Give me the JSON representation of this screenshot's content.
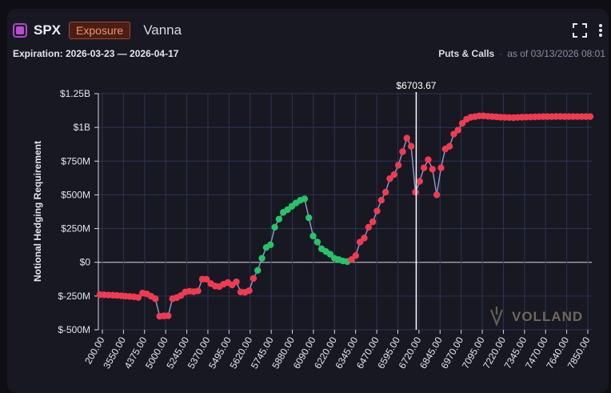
{
  "header": {
    "ticker": "SPX",
    "badge": "Exposure",
    "metric": "Vanna"
  },
  "subheader": {
    "expiration": "Expiration: 2026-03-23 — 2026-04-17",
    "type": "Puts & Calls",
    "sep": "·",
    "asof": "as of 03/13/2026 08:01"
  },
  "icons": [
    "fullscreen-icon",
    "more-vertical-icon"
  ],
  "colors": {
    "positive": "#27c46a",
    "negative": "#ef3b52",
    "connector": "#8c93c8",
    "spot": "#ffffff",
    "grid": "#2c3552"
  },
  "watermark": "VOLLAND",
  "chart_data": {
    "type": "scatter",
    "ylabel": "Notional Hedging Requirement",
    "ylim": [
      -500000000,
      1250000000
    ],
    "yticks": [
      {
        "value": 1250000000,
        "label": "$1.25B"
      },
      {
        "value": 1000000000,
        "label": "$1B"
      },
      {
        "value": 750000000,
        "label": "$750M"
      },
      {
        "value": 500000000,
        "label": "$500M"
      },
      {
        "value": 250000000,
        "label": "$250M"
      },
      {
        "value": 0,
        "label": "$0"
      },
      {
        "value": -250000000,
        "label": "$-250M"
      },
      {
        "value": -500000000,
        "label": "$-500M"
      }
    ],
    "xtick_labels": [
      "200.00",
      "3550.00",
      "4375.00",
      "5000.00",
      "5245.00",
      "5370.00",
      "5495.00",
      "5620.00",
      "5745.00",
      "5880.00",
      "6090.00",
      "6220.00",
      "6345.00",
      "6470.00",
      "6595.00",
      "6720.00",
      "6845.00",
      "6970.00",
      "7095.00",
      "7220.00",
      "7345.00",
      "7470.00",
      "7640.00",
      "7850.00"
    ],
    "spot": {
      "value": 6703.67,
      "label": "$6703.67"
    },
    "grid": true,
    "series": [
      {
        "values": [
          -240,
          -241,
          -243,
          -244,
          -246,
          -248,
          -251,
          -253,
          -256,
          -261,
          -228,
          -235,
          -252,
          -270,
          -400,
          -397,
          -396,
          -270,
          -262,
          -246,
          -220,
          -214,
          -218,
          -212,
          -125,
          -126,
          -158,
          -176,
          -180,
          -162,
          -150,
          -168,
          -145,
          -220,
          -222,
          -210,
          -120,
          -60,
          30,
          110,
          130,
          260,
          320,
          370,
          390,
          415,
          440,
          460,
          470,
          330,
          195,
          150,
          100,
          80,
          60,
          30,
          20,
          10,
          5,
          20,
          50,
          150,
          180,
          260,
          300,
          380,
          460,
          520,
          620,
          650,
          720,
          820,
          920,
          860,
          520,
          600,
          700,
          760,
          690,
          500,
          700,
          840,
          860,
          950,
          980,
          1030,
          1060,
          1075,
          1080,
          1085,
          1085,
          1082,
          1080,
          1078,
          1075,
          1074,
          1073,
          1072,
          1074,
          1075,
          1076,
          1077,
          1078,
          1079,
          1080,
          1080,
          1080,
          1081,
          1081,
          1080,
          1080,
          1080,
          1080,
          1080,
          1080,
          1080
        ]
      }
    ],
    "value_unit": "$M"
  }
}
